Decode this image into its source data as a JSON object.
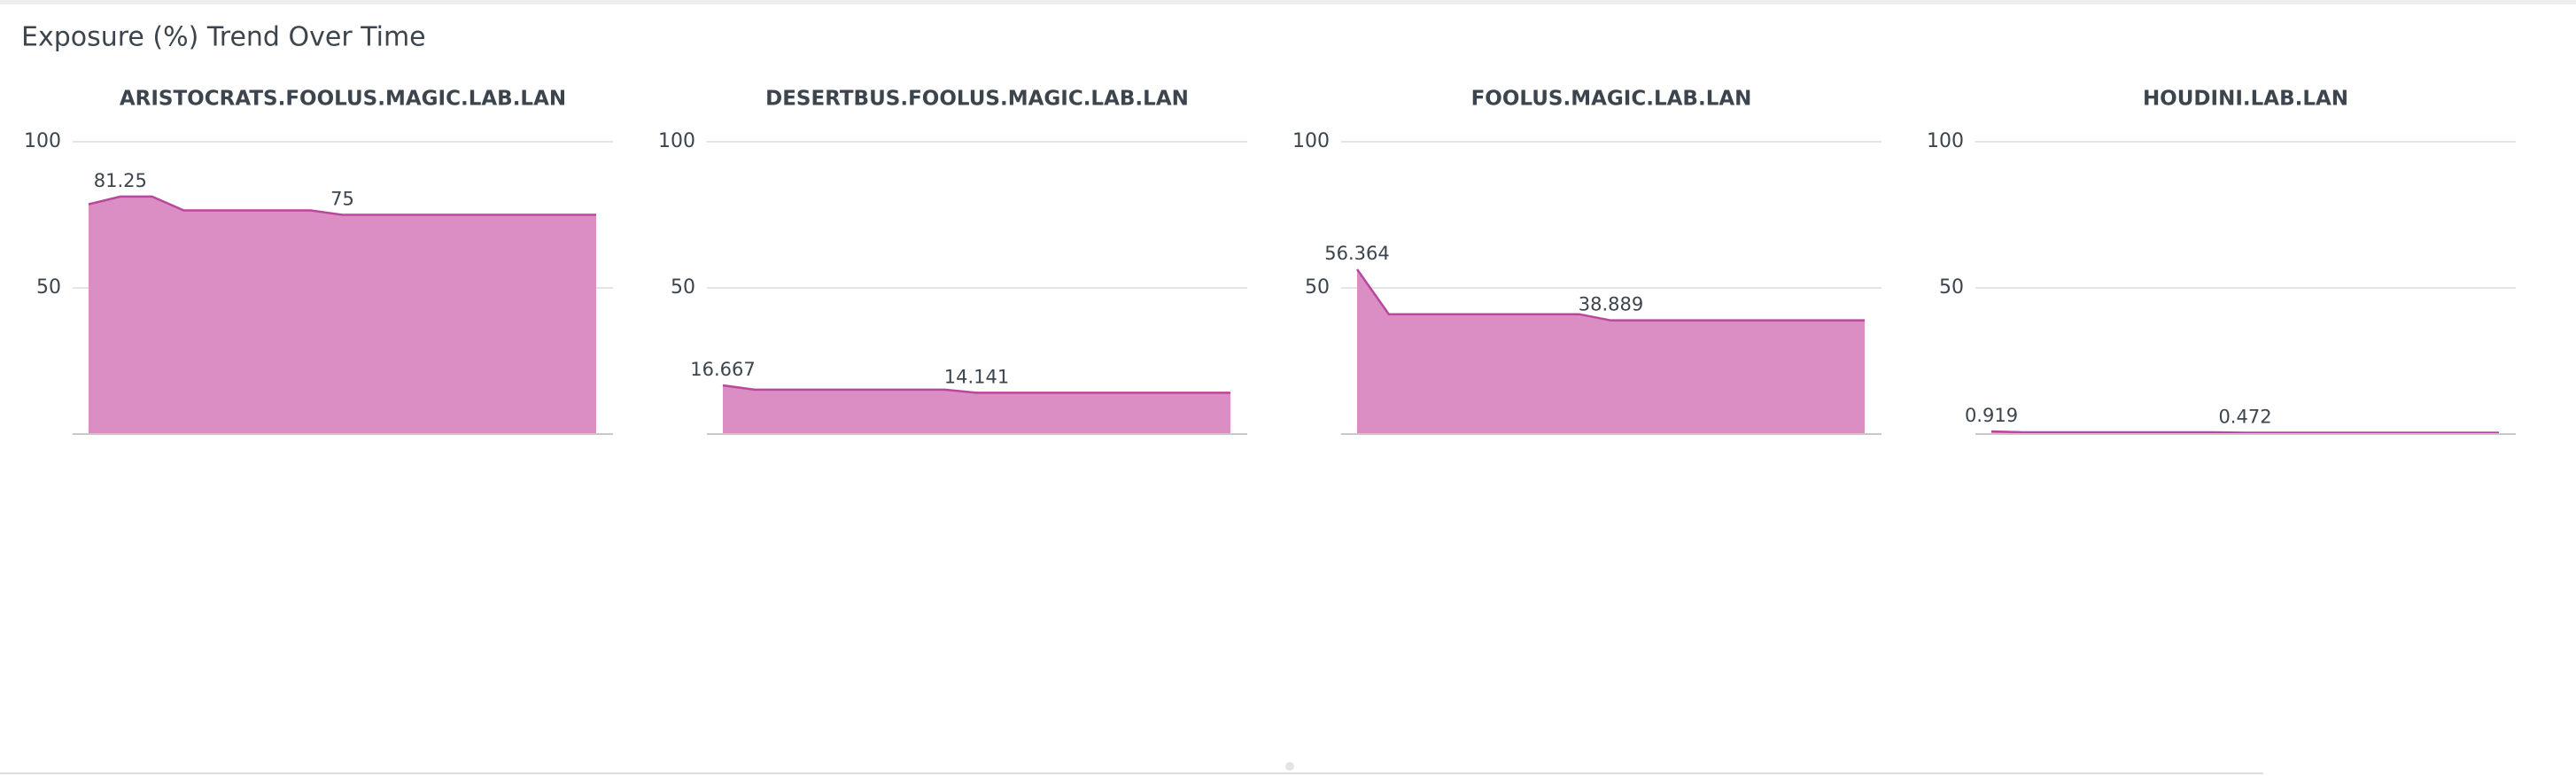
{
  "panel_title": "Exposure (%) Trend Over Time",
  "chart_data": [
    {
      "type": "area",
      "title": "ARISTOCRATS.FOOLUS.MAGIC.LAB.LAN",
      "values": [
        78.6,
        81.25,
        81.25,
        76.5,
        76.5,
        76.5,
        76.5,
        76.5,
        75,
        75,
        75,
        75,
        75,
        75,
        75,
        75,
        75
      ],
      "color": "#da8ec4",
      "line_color": "#b9489c",
      "ylim": [
        0,
        100
      ],
      "yticks": [
        50,
        100
      ],
      "grid": true,
      "data_labels": "minmax"
    },
    {
      "type": "area",
      "title": "DESERTBUS.FOOLUS.MAGIC.LAB.LAN",
      "values": [
        16.667,
        15.2,
        15.2,
        15.2,
        15.2,
        15.2,
        15.2,
        15.2,
        14.141,
        14.141,
        14.141,
        14.141,
        14.141,
        14.141,
        14.141,
        14.141,
        14.141
      ],
      "color": "#da8ec4",
      "line_color": "#b9489c",
      "ylim": [
        0,
        100
      ],
      "yticks": [
        50,
        100
      ],
      "grid": true,
      "data_labels": "minmax"
    },
    {
      "type": "area",
      "title": "FOOLUS.MAGIC.LAB.LAN",
      "values": [
        56.364,
        41.0,
        41.0,
        41.0,
        41.0,
        41.0,
        41.0,
        41.0,
        38.889,
        38.889,
        38.889,
        38.889,
        38.889,
        38.889,
        38.889,
        38.889,
        38.889
      ],
      "color": "#da8ec4",
      "line_color": "#b9489c",
      "ylim": [
        0,
        100
      ],
      "yticks": [
        50,
        100
      ],
      "grid": true,
      "data_labels": "minmax"
    },
    {
      "type": "area",
      "title": "HOUDINI.LAB.LAN",
      "values": [
        0.919,
        0.6,
        0.6,
        0.6,
        0.6,
        0.6,
        0.6,
        0.6,
        0.472,
        0.472,
        0.472,
        0.472,
        0.472,
        0.472,
        0.472,
        0.472,
        0.472
      ],
      "color": "#da8ec4",
      "line_color": "#b9489c",
      "ylim": [
        0,
        100
      ],
      "yticks": [
        50,
        100
      ],
      "grid": true,
      "data_labels": "minmax"
    }
  ]
}
